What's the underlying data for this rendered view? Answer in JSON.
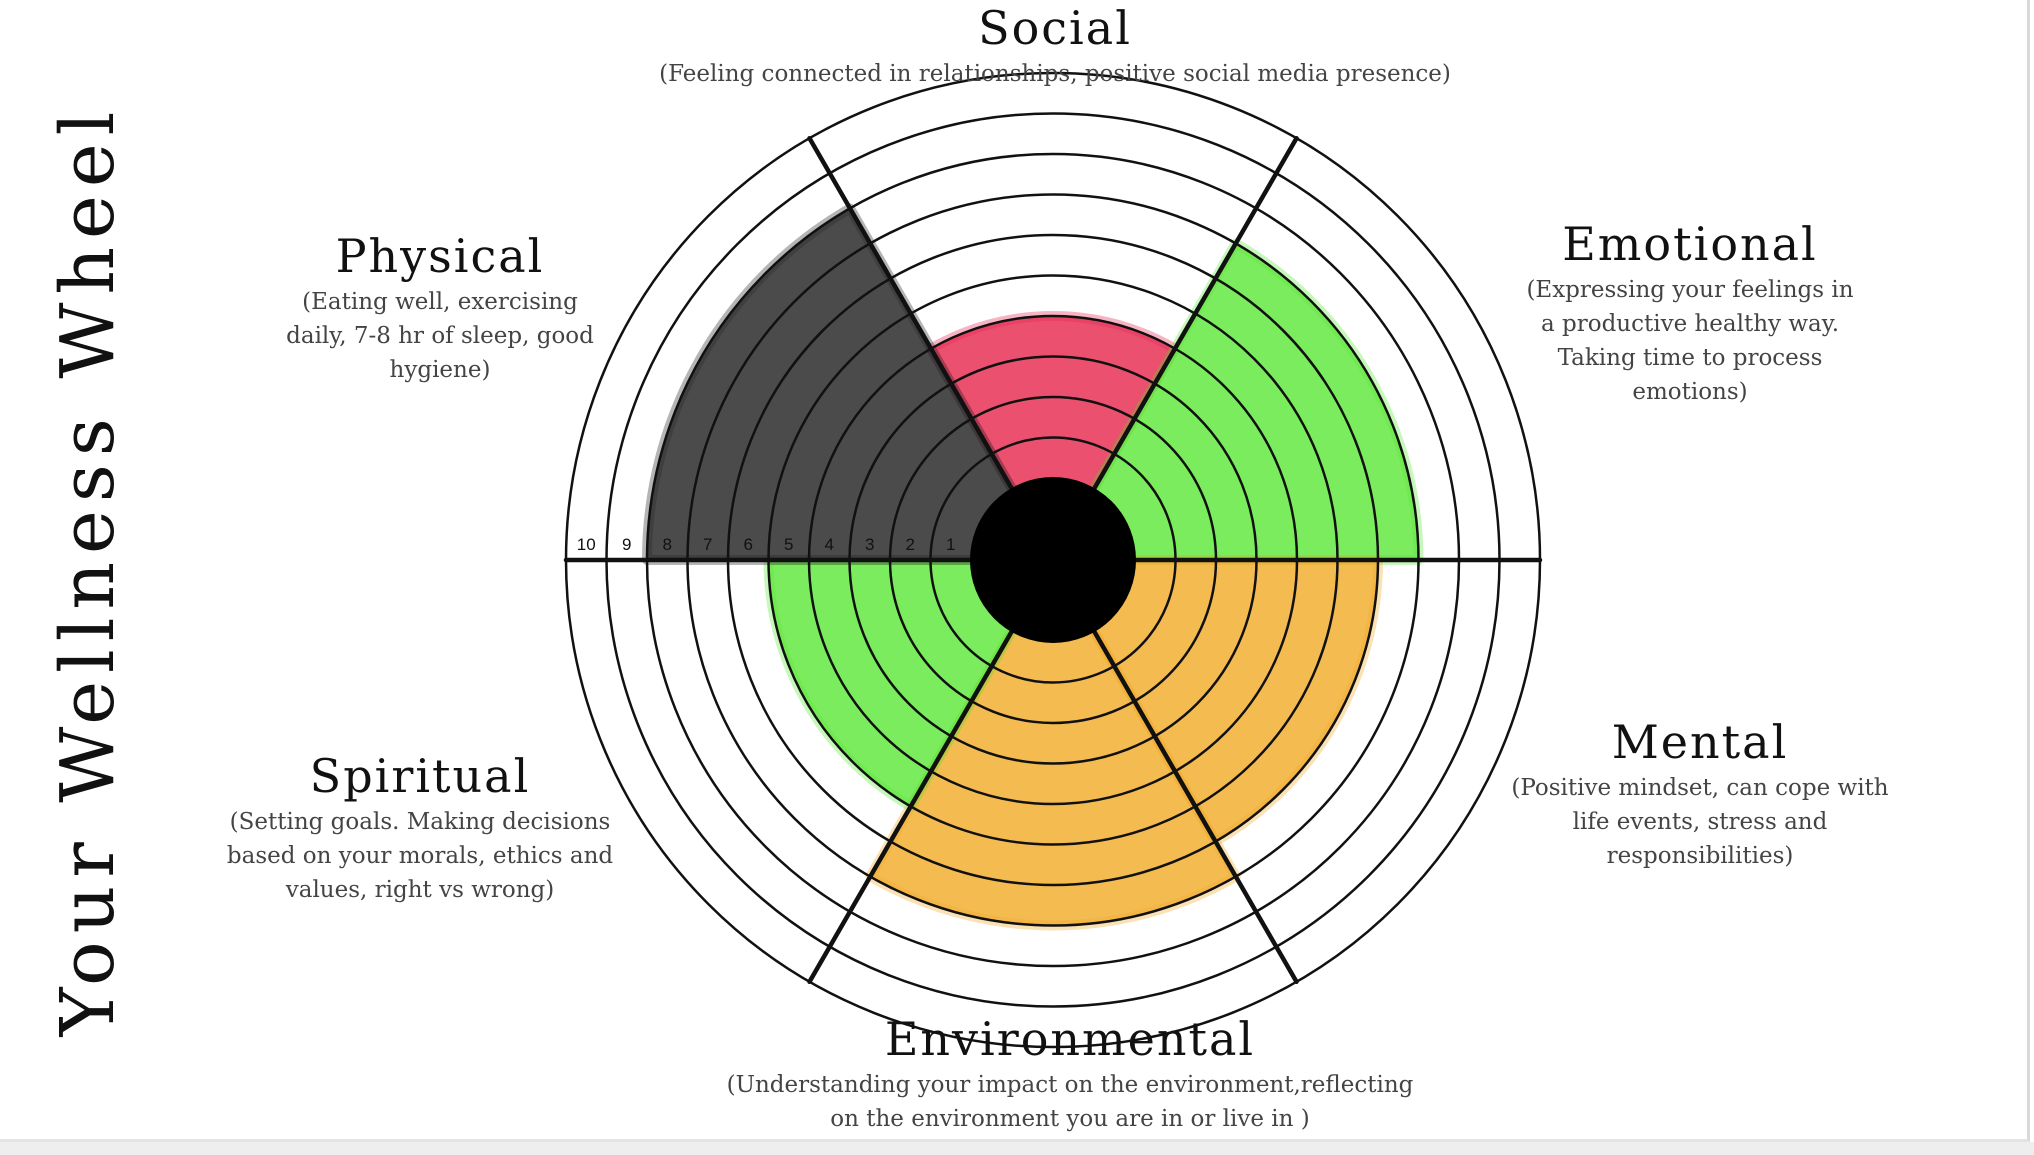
{
  "title": "Your Wellness Wheel",
  "wheel": {
    "ring_count": 10,
    "ring_labels": [
      "1",
      "2",
      "3",
      "4",
      "5",
      "6",
      "7",
      "8",
      "9",
      "10"
    ],
    "segment_count": 6
  },
  "dimensions": [
    {
      "name": "Social",
      "description": "(Feeling connected in relationships, positive social media presence)",
      "fill_color": "#e8294f",
      "rating": 4
    },
    {
      "name": "Emotional",
      "description": "(Expressing your feelings in\na productive healthy way.\nTaking time to process\nemotions)",
      "fill_color": "#5ee83a",
      "rating": 7
    },
    {
      "name": "Mental",
      "description": "(Positive mindset, can cope with\nlife events, stress and\nresponsibilities)",
      "fill_color": "#f2ac2a",
      "rating": 6
    },
    {
      "name": "Environmental",
      "description": "(Understanding your impact on the environment,reflecting\non the environment you are in or live in )",
      "fill_color": "#f2ac2a",
      "rating": 7
    },
    {
      "name": "Spiritual",
      "description": "(Setting goals. Making decisions\nbased on your morals, ethics and\nvalues, right vs wrong)",
      "fill_color": "#5ee83a",
      "rating": 5
    },
    {
      "name": "Physical",
      "description": "(Eating well, exercising\ndaily, 7-8 hr of sleep, good\nhygiene)",
      "fill_color": "#2b2b2b",
      "rating": 8
    }
  ]
}
